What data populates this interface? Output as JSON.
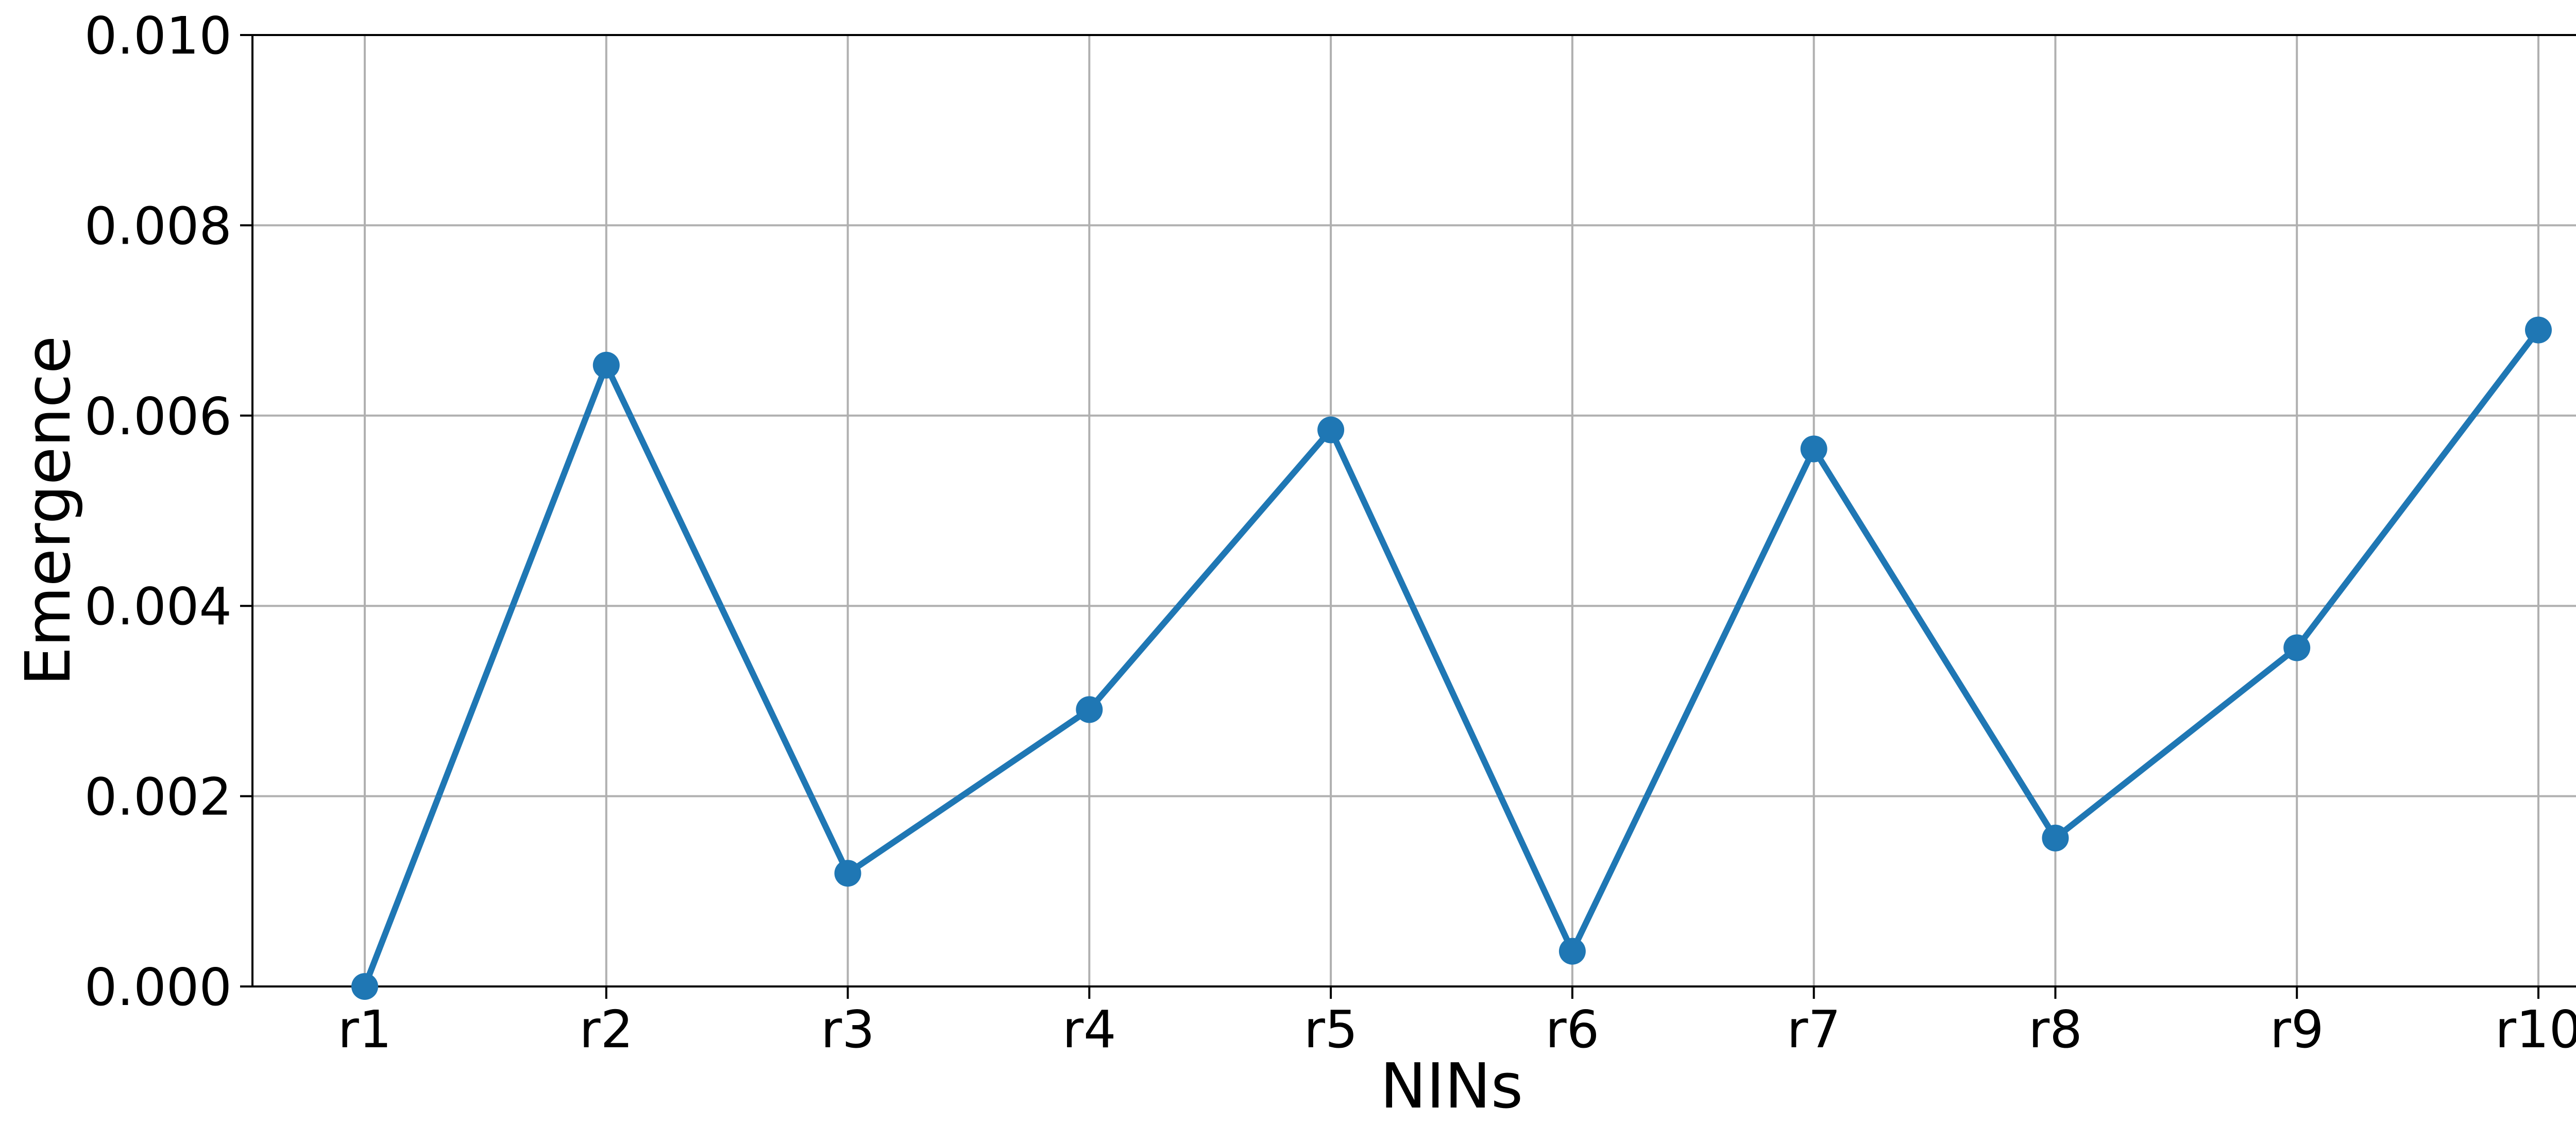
{
  "chart_data": {
    "type": "line",
    "title": "",
    "xlabel": "NINs",
    "ylabel": "Emergence",
    "categories": [
      "r1",
      "r2",
      "r3",
      "r4",
      "r5",
      "r6",
      "r7",
      "r8",
      "r9",
      "r10"
    ],
    "series": [
      {
        "values": [
          0.0,
          0.00653,
          0.00119,
          0.00291,
          0.00585,
          0.00037,
          0.00565,
          0.00156,
          0.00356,
          0.0069
        ],
        "color": "#1f77b4",
        "marker": "circle"
      }
    ],
    "ylim": [
      0,
      0.01
    ],
    "yticks": [
      "0.000",
      "0.002",
      "0.004",
      "0.006",
      "0.008",
      "0.010"
    ],
    "grid": true,
    "legend": "none"
  }
}
